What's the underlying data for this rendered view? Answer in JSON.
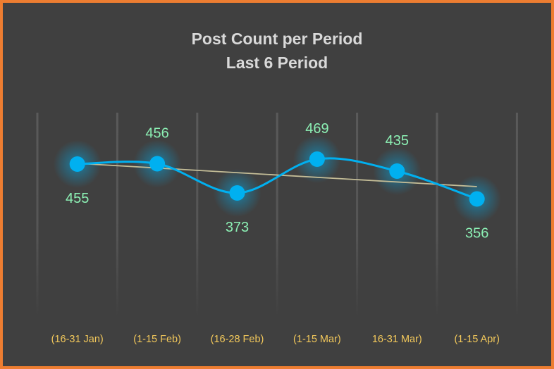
{
  "chart_data": {
    "type": "line",
    "title": "Post Count per Period",
    "subtitle": "Last 6 Period",
    "categories": [
      "(16-31 Jan)",
      "(1-15 Feb)",
      "(16-28 Feb)",
      "(1-15 Mar)",
      "16-31 Mar)",
      "(1-15 Apr)"
    ],
    "values": [
      455,
      456,
      373,
      469,
      435,
      356
    ],
    "data_labels": [
      "455",
      "456",
      "373",
      "469",
      "435",
      "356"
    ],
    "label_positions": [
      "below",
      "above",
      "below",
      "above",
      "above",
      "below"
    ],
    "trendline": "linear",
    "ylim": [
      300,
      500
    ],
    "xlabel": "",
    "ylabel": "",
    "grid": "vertical",
    "colors": {
      "line": "#00B0F0",
      "trend": "#C4BD97",
      "labels": "#8CF0B4",
      "ticks": "#F2C85B",
      "border": "#ED7D31",
      "background": "#404040"
    }
  }
}
